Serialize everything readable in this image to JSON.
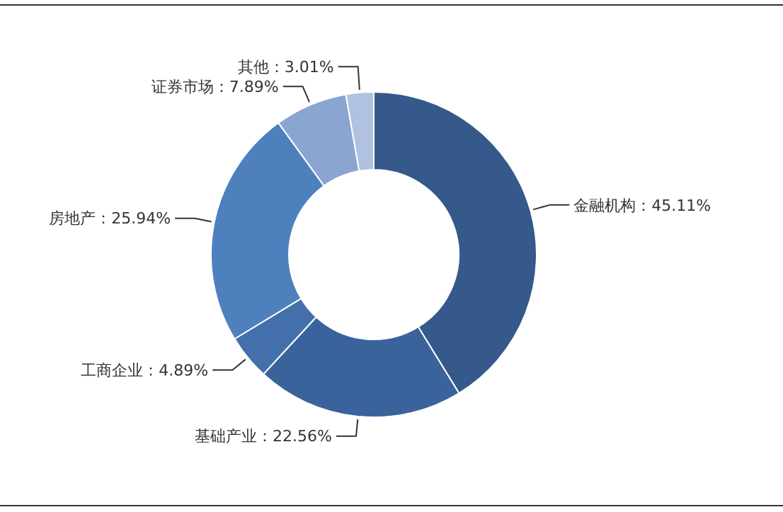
{
  "chart_data": {
    "type": "donut",
    "categories": [
      "金融机构",
      "基础产业",
      "工商企业",
      "房地产",
      "证券市场",
      "其他"
    ],
    "values": [
      45.11,
      22.56,
      4.89,
      25.94,
      7.89,
      3.01
    ],
    "value_labels": [
      "45.11%",
      "22.56%",
      "4.89%",
      "25.94%",
      "7.89%",
      "3.01%"
    ],
    "colors": [
      "#34598a",
      "#3a639c",
      "#4370ab",
      "#4d80bd",
      "#89a5d0",
      "#b1c1e0"
    ],
    "legend": false
  }
}
